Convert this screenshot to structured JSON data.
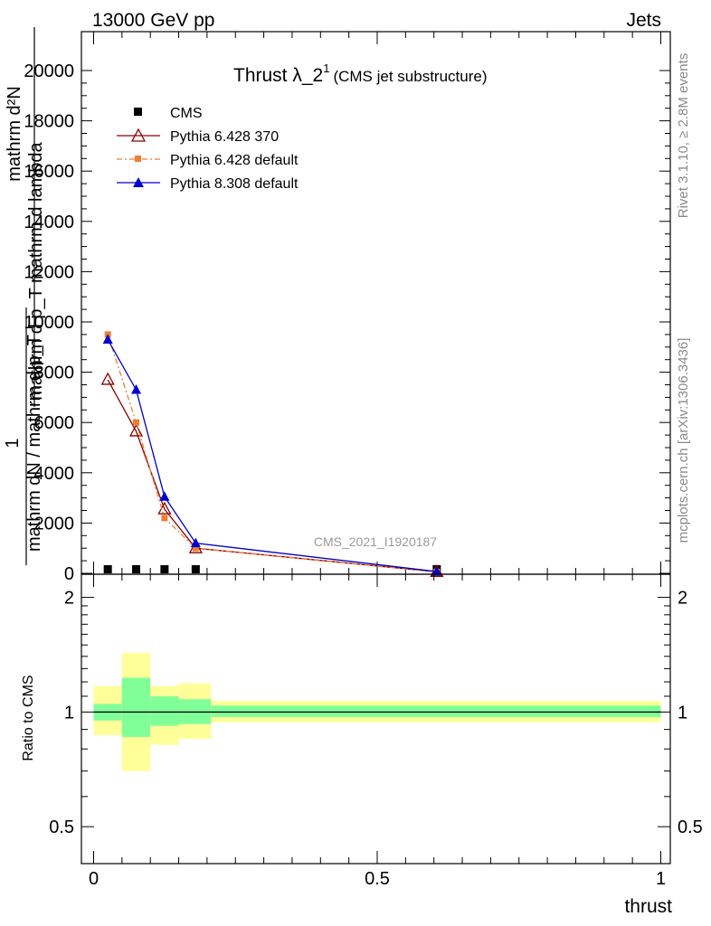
{
  "header": {
    "left": "13000 GeV pp",
    "right": "Jets"
  },
  "title": {
    "main": "Thrust λ_2",
    "superscript": "1",
    "sub": "(CMS jet substructure)"
  },
  "side": {
    "rivet": "Rivet 3.1.10, ≥ 2.8M events",
    "mcplots": "mcplots.cern.ch [arXiv:1306.3436]"
  },
  "watermark": "CMS_2021_I1920187",
  "ylabel_main": {
    "num_top": "mathrm d²N",
    "num_bottom": "mathrm d p_T mathrm d lambda",
    "one": "1",
    "den": "mathrm dN / mathrm d p_T"
  },
  "ylabel_ratio": "Ratio to CMS",
  "xlabel": "thrust",
  "legend": [
    "CMS",
    "Pythia 6.428 370",
    "Pythia 6.428 default",
    "Pythia 8.308 default"
  ],
  "colors": {
    "cms": "#000000",
    "p6_370": "#8b0000",
    "p6_default": "#f07d32",
    "p8_default": "#0000cc",
    "band_outer": "#ffff99",
    "band_inner": "#80ff99"
  },
  "chart_data": [
    {
      "type": "line",
      "ylim": [
        0,
        21500
      ],
      "xlim": [
        -0.02,
        1.02
      ],
      "yticks": [
        0,
        2000,
        4000,
        6000,
        8000,
        10000,
        12000,
        14000,
        16000,
        18000,
        20000
      ],
      "ytick_labels": [
        "0",
        "2000",
        "4000",
        "6000",
        "8000",
        "10000",
        "12000",
        "14000",
        "16000",
        "18000",
        "20000"
      ],
      "bins": [
        [
          0,
          0.05
        ],
        [
          0.05,
          0.1
        ],
        [
          0.1,
          0.15
        ],
        [
          0.15,
          0.21
        ],
        [
          0.21,
          1.0
        ]
      ],
      "series": [
        {
          "name": "CMS",
          "x": [
            0.025,
            0.075,
            0.125,
            0.18,
            0.605
          ],
          "y": [
            0,
            0,
            0,
            0,
            0
          ]
        },
        {
          "name": "Pythia 6.428 370",
          "x": [
            0.025,
            0.075,
            0.125,
            0.18,
            0.605
          ],
          "y": [
            7700,
            5650,
            2550,
            1000,
            60
          ]
        },
        {
          "name": "Pythia 6.428 default",
          "x": [
            0.025,
            0.075,
            0.125,
            0.18,
            0.605
          ],
          "y": [
            9500,
            6000,
            2200,
            1000,
            55
          ]
        },
        {
          "name": "Pythia 8.308 default",
          "x": [
            0.025,
            0.075,
            0.125,
            0.18,
            0.605
          ],
          "y": [
            9300,
            7300,
            3050,
            1200,
            70
          ]
        }
      ]
    },
    {
      "type": "area",
      "ylim": [
        0.4,
        2.3
      ],
      "yscale": "log",
      "yticks": [
        0.5,
        1,
        2
      ],
      "ytick_labels": [
        "0.5",
        "1",
        "2"
      ],
      "xticks": [
        0,
        0.5,
        1
      ],
      "xtick_labels": [
        "0",
        "0.5",
        "1"
      ],
      "reference": 1,
      "bands": [
        {
          "x0": 0.0,
          "x1": 0.05,
          "outer": [
            0.87,
            1.17
          ],
          "inner": [
            0.95,
            1.05
          ]
        },
        {
          "x0": 0.05,
          "x1": 0.1,
          "outer": [
            0.7,
            1.43
          ],
          "inner": [
            0.86,
            1.23
          ]
        },
        {
          "x0": 0.1,
          "x1": 0.15,
          "outer": [
            0.82,
            1.17
          ],
          "inner": [
            0.92,
            1.1
          ]
        },
        {
          "x0": 0.15,
          "x1": 0.207,
          "outer": [
            0.85,
            1.19
          ],
          "inner": [
            0.93,
            1.08
          ]
        },
        {
          "x0": 0.207,
          "x1": 1.0,
          "outer": [
            0.94,
            1.07
          ],
          "inner": [
            0.97,
            1.04
          ]
        }
      ]
    }
  ]
}
